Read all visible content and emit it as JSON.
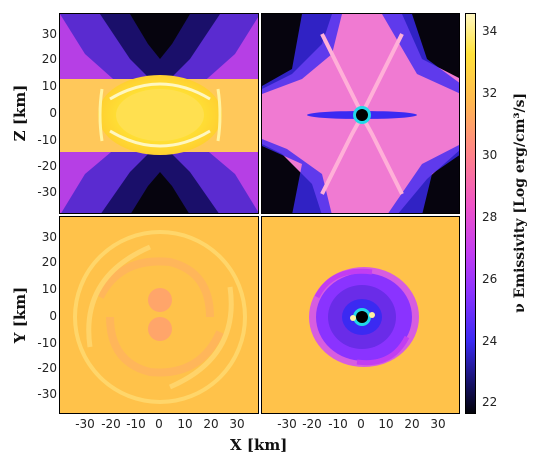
{
  "figure": {
    "panels": [
      {
        "id": "top-left",
        "plane": "X-Z"
      },
      {
        "id": "top-right",
        "plane": "X-Z"
      },
      {
        "id": "bottom-left",
        "plane": "X-Y"
      },
      {
        "id": "bottom-right",
        "plane": "X-Y"
      }
    ],
    "axes": {
      "y_label_top": "Z [km]",
      "y_label_bottom": "Y [km]",
      "x_label": "X [km]",
      "y_ticks": [
        "30",
        "20",
        "10",
        "0",
        "-10",
        "-20",
        "-30"
      ],
      "x_ticks": [
        "-30",
        "-20",
        "-10",
        "0",
        "10",
        "20",
        "30"
      ]
    },
    "colorbar": {
      "label": "ν Emissivity [Log erg/cm³/s]",
      "ticks": [
        "34",
        "32",
        "30",
        "28",
        "26",
        "24",
        "22"
      ],
      "range": [
        21.5,
        34.5
      ],
      "colors": [
        "#03030a",
        "#141061",
        "#3b2af2",
        "#8a33ff",
        "#c23df2",
        "#ef54c8",
        "#ff7f8d",
        "#ffb850",
        "#ffe23a",
        "#fff7c0"
      ]
    }
  }
}
